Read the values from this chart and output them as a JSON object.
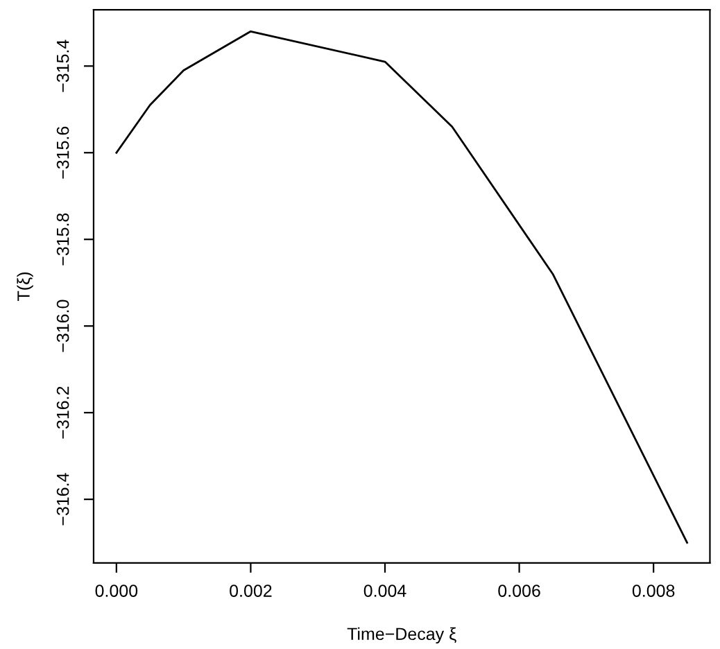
{
  "chart_data": {
    "type": "line",
    "xlabel": "Time−Decay ξ",
    "ylabel": "T(ξ)",
    "x": [
      0,
      0.0005,
      0.001,
      0.002,
      0.004,
      0.005,
      0.0065,
      0.0075,
      0.0085
    ],
    "series": [
      {
        "color": "#000000",
        "values": [
          -315.6,
          -315.49,
          -315.41,
          -315.32,
          -315.39,
          -315.54,
          -315.88,
          -316.19,
          -316.5
        ]
      }
    ],
    "xlim": [
      -0.00034,
      0.00884
    ],
    "ylim": [
      -316.547,
      -315.27
    ],
    "xticks": [
      {
        "value": 0,
        "label": "0.000"
      },
      {
        "value": 0.002,
        "label": "0.002"
      },
      {
        "value": 0.004,
        "label": "0.004"
      },
      {
        "value": 0.006,
        "label": "0.006"
      },
      {
        "value": 0.008,
        "label": "0.008"
      }
    ],
    "yticks": [
      {
        "value": -315.4,
        "label": "−315.4"
      },
      {
        "value": -315.6,
        "label": "−315.6"
      },
      {
        "value": -315.8,
        "label": "−315.8"
      },
      {
        "value": -316.0,
        "label": "−316.0"
      },
      {
        "value": -316.2,
        "label": "−316.2"
      },
      {
        "value": -316.4,
        "label": "−316.4"
      }
    ],
    "grid": false,
    "marker": "none",
    "line_style": "solid"
  }
}
